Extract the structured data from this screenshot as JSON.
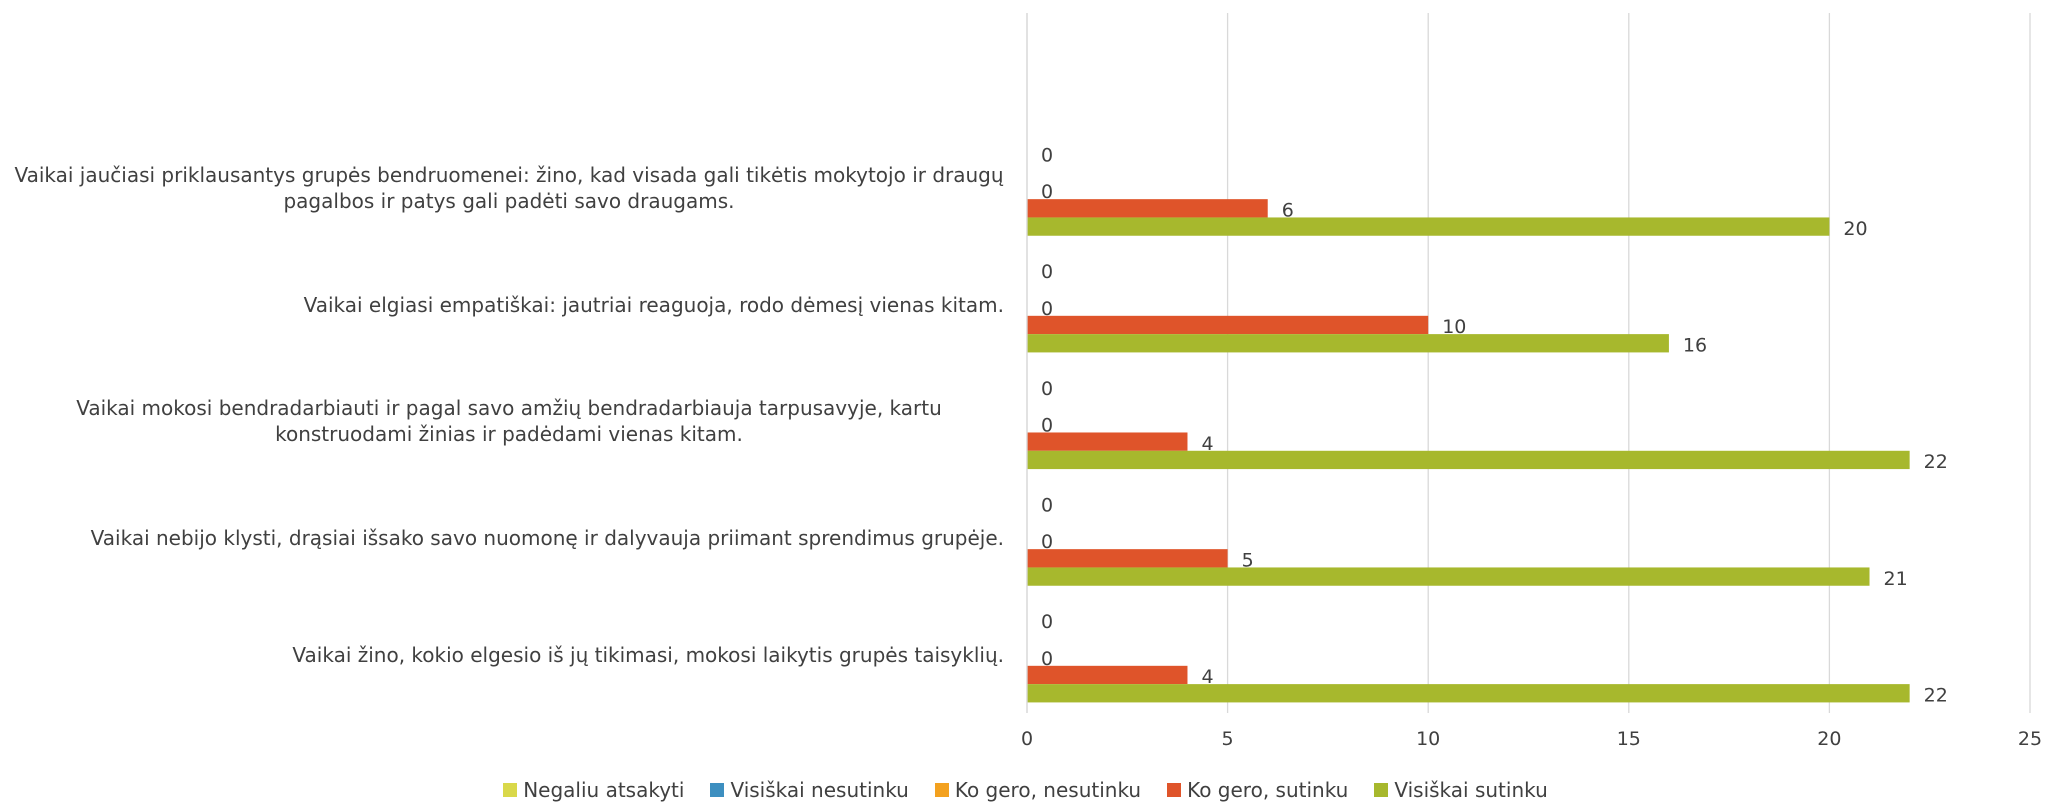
{
  "chart_data": {
    "type": "bar",
    "orientation": "horizontal",
    "categories": [
      null,
      "Vaikai jaučiasi priklausantys grupės bendruomenei: žino, kad visada gali tikėtis mokytojo ir draugų pagalbos ir patys gali padėti savo draugams.",
      "Vaikai elgiasi empatiškai: jautriai reaguoja, rodo dėmesį vienas kitam.",
      "Vaikai mokosi bendradarbiauti ir pagal savo amžių bendradarbiauja tarpusavyje, kartu konstruodami žinias ir padėdami vienas kitam.",
      "Vaikai nebijo klysti, drąsiai išsako savo nuomonę ir dalyvauja priimant sprendimus grupėje.",
      "Vaikai žino, kokio elgesio iš jų tikimasi, mokosi laikytis grupės taisyklių."
    ],
    "series": [
      {
        "name": "Negaliu atsakyti",
        "color": "#d9d84a",
        "values": [
          null,
          0,
          0,
          0,
          0,
          0
        ]
      },
      {
        "name": "Visiškai nesutinku",
        "color": "#3d8fc0",
        "values": [
          null,
          null,
          null,
          null,
          null,
          null
        ]
      },
      {
        "name": "Ko gero, nesutinku",
        "color": "#f3a11f",
        "values": [
          null,
          0,
          0,
          0,
          0,
          0
        ]
      },
      {
        "name": "Ko gero, sutinku",
        "color": "#df542a",
        "values": [
          null,
          6,
          10,
          4,
          5,
          4
        ]
      },
      {
        "name": "Visiškai sutinku",
        "color": "#a7b82d",
        "values": [
          null,
          20,
          16,
          22,
          21,
          22
        ]
      }
    ],
    "xlim": [
      0,
      25
    ],
    "xticks": [
      0,
      5,
      10,
      15,
      20,
      25
    ],
    "grid": true,
    "legend": "bottom"
  }
}
